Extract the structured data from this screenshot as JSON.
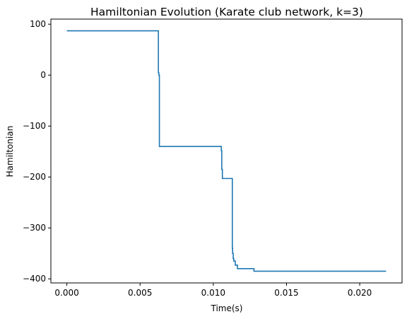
{
  "chart_data": {
    "type": "line",
    "title": "Hamiltonian Evolution (Karate club network, k=3)",
    "xlabel": "Time(s)",
    "ylabel": "Hamiltonian",
    "xlim": [
      -0.00109,
      0.02289
    ],
    "ylim": [
      -408,
      110
    ],
    "xticks": [
      0.0,
      0.005,
      0.01,
      0.015,
      0.02
    ],
    "xtick_labels": [
      "0.000",
      "0.005",
      "0.010",
      "0.015",
      "0.020"
    ],
    "yticks": [
      100,
      0,
      -100,
      -200,
      -300,
      -400
    ],
    "ytick_labels": [
      "100",
      "0",
      "−100",
      "−200",
      "−300",
      "−400"
    ],
    "grid": false,
    "series": [
      {
        "color": "#1f77b4",
        "x": [
          0.0,
          0.00625,
          0.00625,
          0.00628,
          0.00628,
          0.00632,
          0.00632,
          0.01055,
          0.01055,
          0.01058,
          0.01058,
          0.01062,
          0.01062,
          0.0113,
          0.0113,
          0.01132,
          0.01132,
          0.01136,
          0.01136,
          0.0114,
          0.0114,
          0.0115,
          0.0115,
          0.01165,
          0.01165,
          0.01278,
          0.01278,
          0.0218
        ],
        "y": [
          87,
          87,
          5,
          5,
          0,
          0,
          -140,
          -140,
          -148,
          -148,
          -185,
          -185,
          -203,
          -203,
          -340,
          -340,
          -350,
          -350,
          -360,
          -360,
          -365,
          -365,
          -373,
          -373,
          -380,
          -380,
          -385,
          -385
        ]
      }
    ]
  }
}
